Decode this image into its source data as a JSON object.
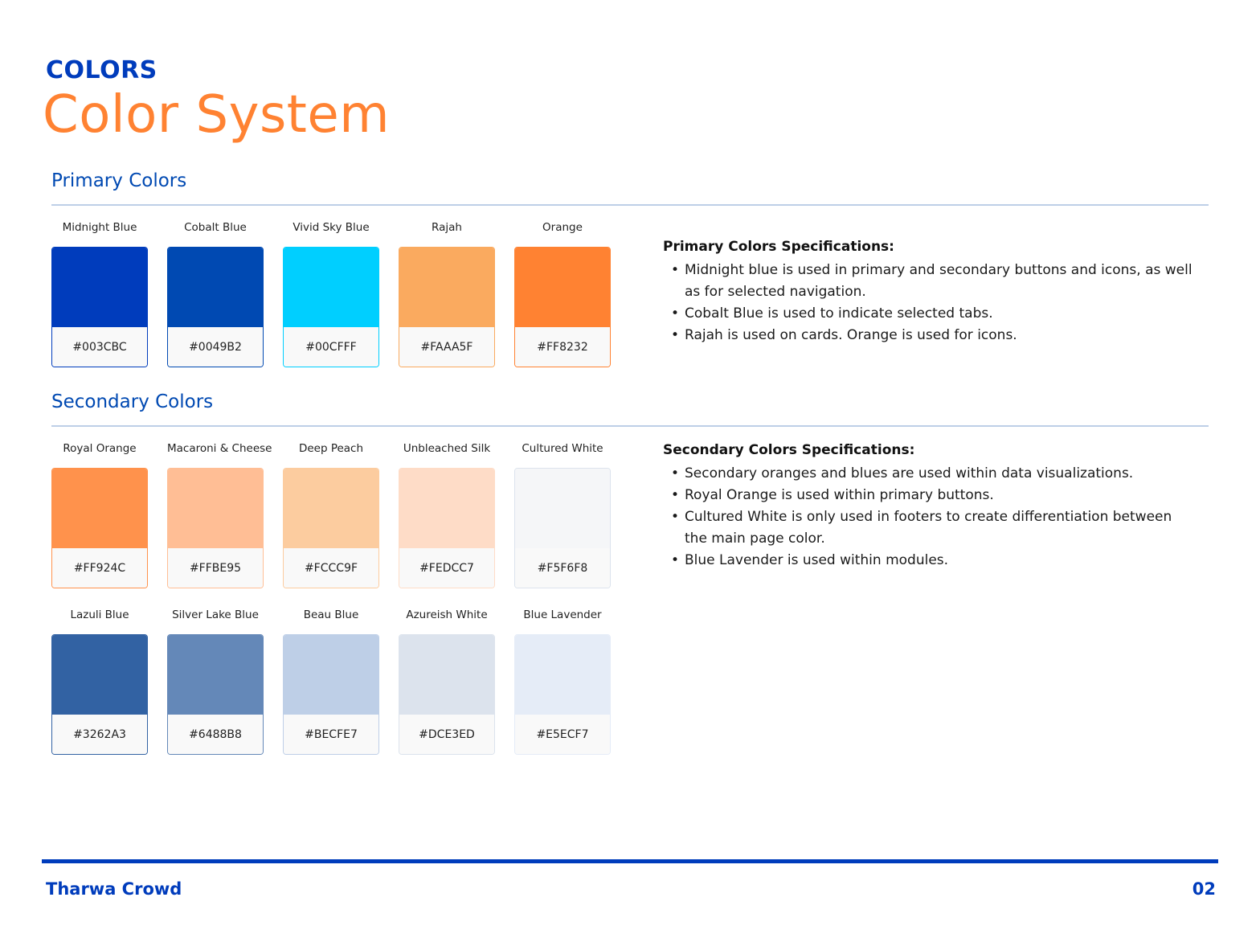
{
  "header": {
    "kicker": "COLORS",
    "title": "Color System"
  },
  "primary": {
    "heading": "Primary Colors",
    "swatches": [
      {
        "name": "Midnight Blue",
        "hex": "#003CBC",
        "color": "#003CBC",
        "border": "#003CBC"
      },
      {
        "name": "Cobalt Blue",
        "hex": "#0049B2",
        "color": "#0049B2",
        "border": "#0049B2"
      },
      {
        "name": "Vivid Sky Blue",
        "hex": "#00CFFF",
        "color": "#00CFFF",
        "border": "#00CFFF"
      },
      {
        "name": "Rajah",
        "hex": "#FAAA5F",
        "color": "#FAAA5F",
        "border": "#FAAA5F"
      },
      {
        "name": "Orange",
        "hex": "#FF8232",
        "color": "#FF8232",
        "border": "#FF8232"
      }
    ],
    "spec_title": "Primary Colors Specifications:",
    "spec_items": [
      "Midnight blue is used in primary and secondary buttons and icons, as well as for selected navigation.",
      "Cobalt Blue is used to indicate selected tabs.",
      "Rajah is used on cards. Orange is used for icons."
    ]
  },
  "secondary": {
    "heading": "Secondary Colors",
    "row1": [
      {
        "name": "Royal Orange",
        "hex": "#FF924C",
        "color": "#FF924C",
        "border": "#FF924C"
      },
      {
        "name": "Macaroni & Cheese",
        "hex": "#FFBE95",
        "color": "#FFBE95",
        "border": "#FFBE95"
      },
      {
        "name": "Deep Peach",
        "hex": "#FCCC9F",
        "color": "#FCCC9F",
        "border": "#FCCC9F"
      },
      {
        "name": "Unbleached Silk",
        "hex": "#FEDCC7",
        "color": "#FEDCC7",
        "border": "#FEDCC7"
      },
      {
        "name": "Cultured White",
        "hex": "#F5F6F8",
        "color": "#F5F6F8",
        "border": "#DCE3ED"
      }
    ],
    "row2": [
      {
        "name": "Lazuli Blue",
        "hex": "#3262A3",
        "color": "#3262A3",
        "border": "#3262A3"
      },
      {
        "name": "Silver Lake Blue",
        "hex": "#6488B8",
        "color": "#6488B8",
        "border": "#6488B8"
      },
      {
        "name": "Beau Blue",
        "hex": "#BECFE7",
        "color": "#BECFE7",
        "border": "#BECFE7"
      },
      {
        "name": "Azureish White",
        "hex": "#DCE3ED",
        "color": "#DCE3ED",
        "border": "#DCE3ED"
      },
      {
        "name": "Blue Lavender",
        "hex": "#E5ECF7",
        "color": "#E5ECF7",
        "border": "#E5ECF7"
      }
    ],
    "spec_title": "Secondary Colors Specifications:",
    "spec_items": [
      "Secondary oranges and blues are used within data visualizations.",
      "Royal Orange is used within primary buttons.",
      "Cultured White is only used in footers to create differentiation between the main page color.",
      "Blue Lavender is used within modules."
    ]
  },
  "footer": {
    "brand": "Tharwa Crowd",
    "page": "02"
  }
}
